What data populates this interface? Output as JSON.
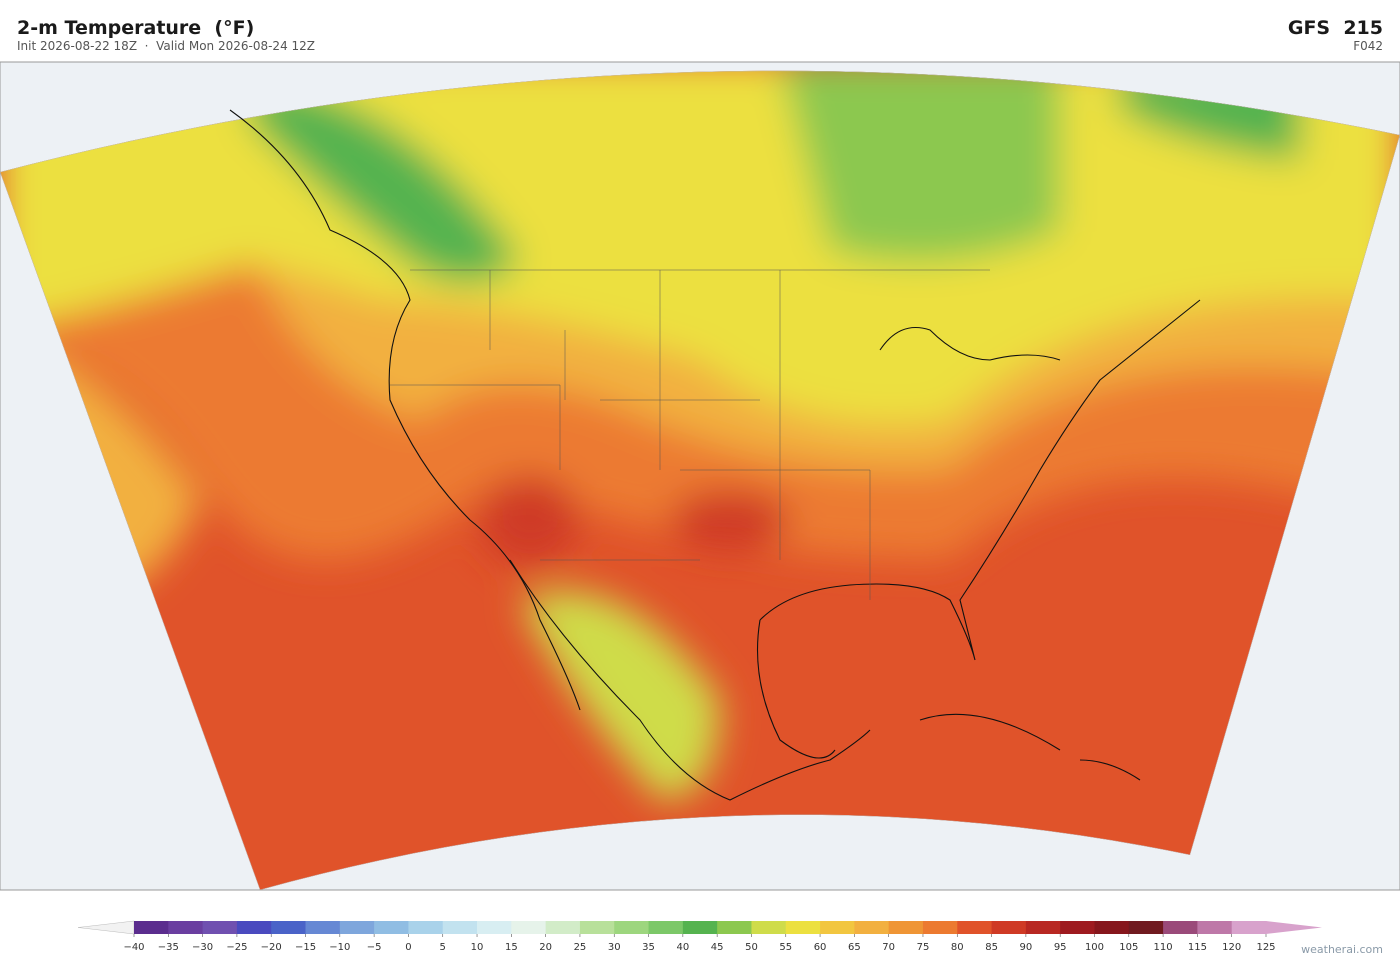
{
  "header": {
    "title": "2-m Temperature  (°F)",
    "subtitle": "Init 2026-08-22 18Z  ·  Valid Mon 2026-08-24 12Z",
    "model": "GFS  215",
    "forecast_hour": "F042"
  },
  "colorbar": {
    "ticks": [
      {
        "value": -40,
        "label": "−40"
      },
      {
        "value": -35,
        "label": "−35"
      },
      {
        "value": -30,
        "label": "−30"
      },
      {
        "value": -25,
        "label": "−25"
      },
      {
        "value": -20,
        "label": "−20"
      },
      {
        "value": -15,
        "label": "−15"
      },
      {
        "value": -10,
        "label": "−10"
      },
      {
        "value": -5,
        "label": "−5"
      },
      0,
      5,
      10,
      15,
      20,
      25,
      30,
      35,
      40,
      45,
      50,
      55,
      60,
      65,
      70,
      75,
      80,
      85,
      90,
      95,
      100,
      105,
      110,
      115,
      120,
      125
    ],
    "colors": [
      "#5b2d8e",
      "#6a3ea0",
      "#7050b0",
      "#4a4abf",
      "#4a63c8",
      "#6688d4",
      "#7ea6dc",
      "#90bde3",
      "#a9d2ea",
      "#c2e2ef",
      "#d8eef2",
      "#e6f3ea",
      "#d2ecc8",
      "#b8e09a",
      "#9dd67e",
      "#7cc868",
      "#55b34f",
      "#8cc84f",
      "#cfdc4a",
      "#ece040",
      "#f2c640",
      "#f2b040",
      "#ef9535",
      "#ec7a30",
      "#e0532a",
      "#cf3a25",
      "#b82822",
      "#9e1a1f",
      "#86161c",
      "#701a20",
      "#9a4a7a",
      "#be78a8",
      "#d8a2cc"
    ],
    "under_color": "#f2f2f2",
    "over_color": "#d8a2cc"
  },
  "credit": "weatherai.com"
}
